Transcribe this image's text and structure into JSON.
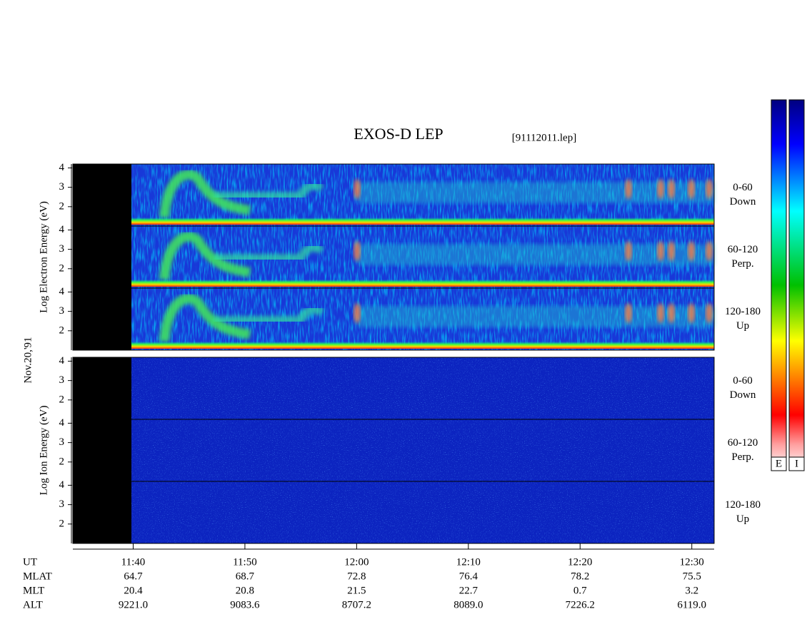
{
  "chart_data": {
    "type": "spectrogram",
    "title": "EXOS-D LEP",
    "file": "[91112011.lep]",
    "date": "Nov.20,'91",
    "groups": [
      {
        "ylabel": "Log Electron Energy (eV)",
        "panels": [
          {
            "pitch": "0-60",
            "direction": "Down"
          },
          {
            "pitch": "60-120",
            "direction": "Perp."
          },
          {
            "pitch": "120-180",
            "direction": "Up"
          }
        ]
      },
      {
        "ylabel": "Log Ion Energy (eV)",
        "panels": [
          {
            "pitch": "0-60",
            "direction": "Down"
          },
          {
            "pitch": "60-120",
            "direction": "Perp."
          },
          {
            "pitch": "120-180",
            "direction": "Up"
          }
        ]
      }
    ],
    "ylim": [
      1,
      4.2
    ],
    "yticks": [
      2,
      3,
      4
    ],
    "xlim": [
      694.6,
      752
    ],
    "xticks": [
      {
        "value": 700,
        "label": "11:40"
      },
      {
        "value": 710,
        "label": "11:50"
      },
      {
        "value": 720,
        "label": "12:00"
      },
      {
        "value": 730,
        "label": "12:10"
      },
      {
        "value": 740,
        "label": "12:20"
      },
      {
        "value": 750,
        "label": "12:30"
      }
    ],
    "ut_label": "UT",
    "orbit": [
      {
        "label": "MLAT",
        "values": [
          "64.7",
          "68.7",
          "72.8",
          "76.4",
          "78.2",
          "75.5"
        ]
      },
      {
        "label": "MLT",
        "values": [
          "20.4",
          "20.8",
          "21.5",
          "22.7",
          "0.7",
          "3.2"
        ]
      },
      {
        "label": "ALT",
        "values": [
          "9221.0",
          "9083.6",
          "8707.2",
          "8089.0",
          "7226.2",
          "6119.0"
        ]
      }
    ],
    "colorbar_labels": [
      "E",
      "I"
    ]
  }
}
